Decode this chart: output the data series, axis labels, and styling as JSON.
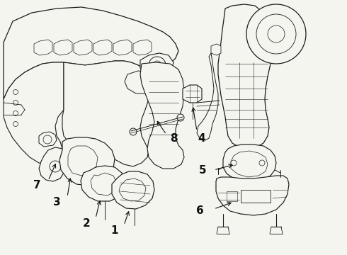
{
  "background_color": "#f5f5f0",
  "line_color": "#1a1a1a",
  "label_color": "#111111",
  "fig_width": 4.9,
  "fig_height": 3.6,
  "dpi": 100
}
